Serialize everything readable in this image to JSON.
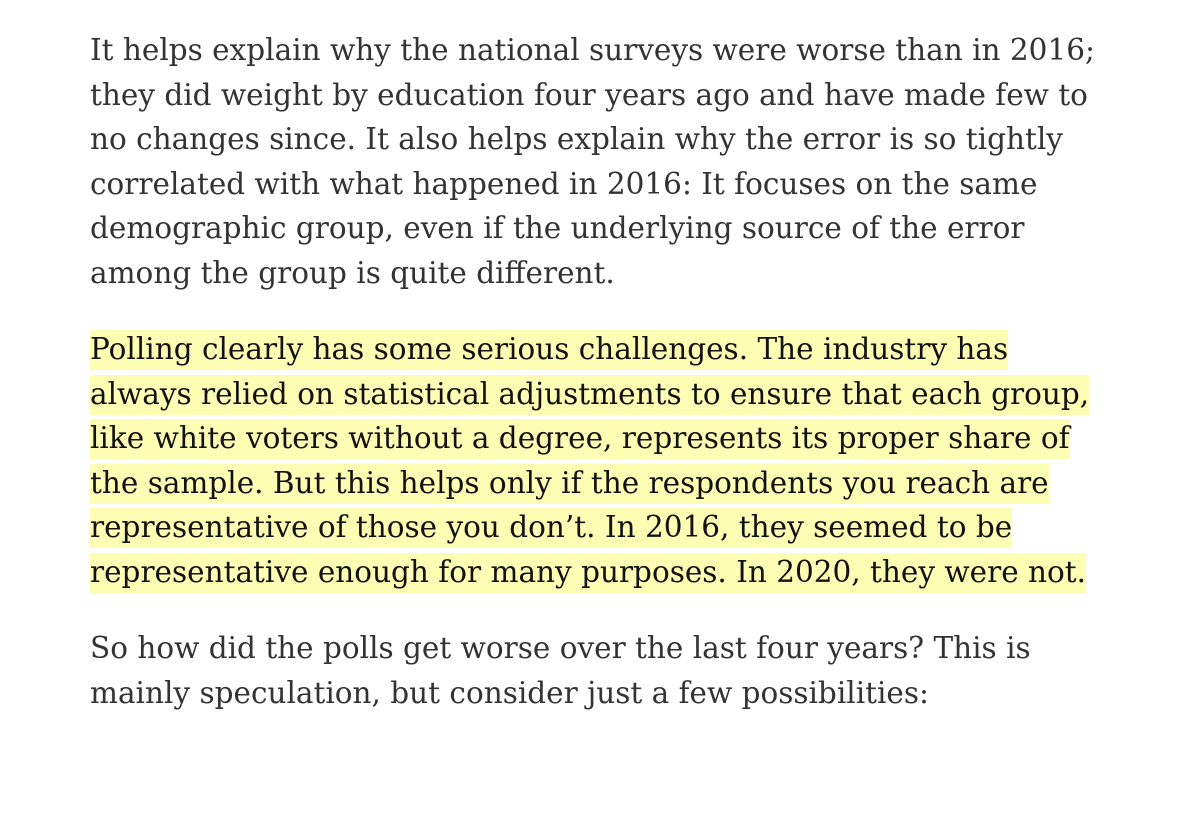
{
  "article": {
    "paragraphs": [
      {
        "highlighted": false,
        "lines": [
          "It helps explain why the national surveys were worse than in 2016;",
          "they did weight by education four years ago and have made few to",
          "no changes since. It also helps explain why the error is so tightly",
          "correlated with what happened in 2016: It focuses on the same",
          "demographic group, even if the underlying source of the error",
          "among the group is quite different."
        ]
      },
      {
        "highlighted": true,
        "lines": [
          "Polling clearly has some serious challenges. The industry has",
          "always relied on statistical adjustments to ensure that each group,",
          "like white voters without a degree, represents its proper share of",
          "the sample. But this helps only if the respondents you reach are",
          "representative of those you don’t. In 2016, they seemed to be",
          "representative enough for many purposes. In 2020, they were not."
        ]
      },
      {
        "highlighted": false,
        "lines": [
          "So how did the polls get worse over the last four years? This is",
          "mainly speculation, but consider just a few possibilities:"
        ]
      }
    ],
    "highlight_color": "#fdfdb3",
    "text_color": "#333333"
  }
}
